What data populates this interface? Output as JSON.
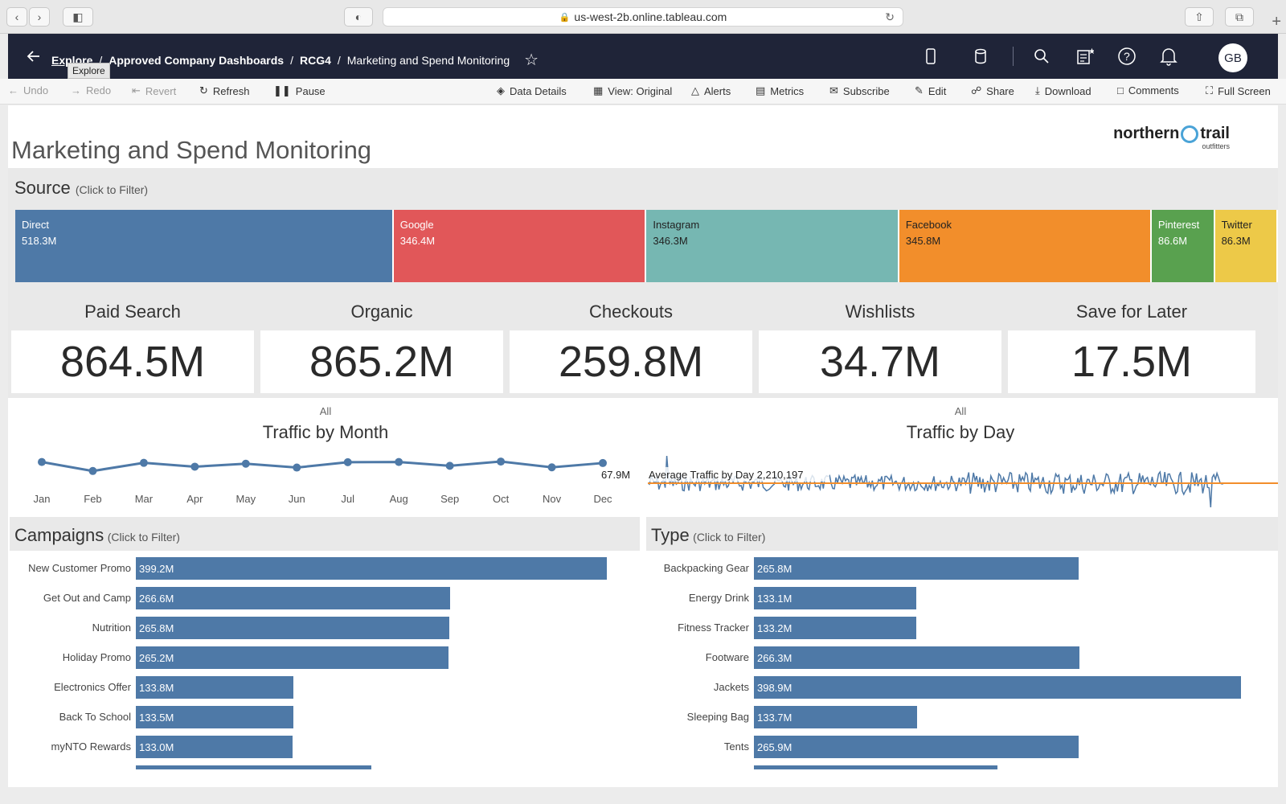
{
  "browser": {
    "url": "us-west-2b.online.tableau.com"
  },
  "nav": {
    "crumbs": [
      {
        "label": "Explore"
      },
      {
        "label": "Approved Company Dashboards"
      },
      {
        "label": "RCG4"
      },
      {
        "label": "Marketing and Spend Monitoring"
      }
    ],
    "separator": "/",
    "avatar_initials": "GB",
    "tooltip": "Explore"
  },
  "toolbar": {
    "undo": "Undo",
    "redo": "Redo",
    "revert": "Revert",
    "refresh": "Refresh",
    "pause": "Pause",
    "data_details": "Data Details",
    "view": "View: Original",
    "alerts": "Alerts",
    "metrics": "Metrics",
    "subscribe": "Subscribe",
    "edit": "Edit",
    "share": "Share",
    "download": "Download",
    "comments": "Comments",
    "full_screen": "Full Screen"
  },
  "dashboard": {
    "title": "Marketing and Spend Monitoring",
    "logo": {
      "left": "northern",
      "right": "trail",
      "sub": "outfitters"
    },
    "source": {
      "title": "Source",
      "hint": "(Click to Filter)",
      "items": [
        {
          "name": "Direct",
          "value": "518.3M",
          "num": 518.3,
          "color": "#4e79a7",
          "text_color": "#ffffff"
        },
        {
          "name": "Google",
          "value": "346.4M",
          "num": 346.4,
          "color": "#e15759",
          "text_color": "#ffffff"
        },
        {
          "name": "Instagram",
          "value": "346.3M",
          "num": 346.3,
          "color": "#76b7b2",
          "text_color": "#222222"
        },
        {
          "name": "Facebook",
          "value": "345.8M",
          "num": 345.8,
          "color": "#f28e2b",
          "text_color": "#222222"
        },
        {
          "name": "Pinterest",
          "value": "86.6M",
          "num": 86.6,
          "color": "#59a14f",
          "text_color": "#ffffff"
        },
        {
          "name": "Twitter",
          "value": "86.3M",
          "num": 86.3,
          "color": "#edc948",
          "text_color": "#222222"
        }
      ]
    },
    "kpis": [
      {
        "label": "Paid Search",
        "value": "864.5M"
      },
      {
        "label": "Organic",
        "value": "865.2M"
      },
      {
        "label": "Checkouts",
        "value": "259.8M"
      },
      {
        "label": "Wishlists",
        "value": "34.7M"
      },
      {
        "label": "Save for Later",
        "value": "17.5M"
      }
    ],
    "traffic_month": {
      "filter": "All",
      "title": "Traffic by Month",
      "last_label": "67.9M"
    },
    "traffic_day": {
      "filter": "All",
      "title": "Traffic by Day",
      "avg_label": "Average Traffic by Day 2,210,197"
    },
    "campaigns": {
      "title": "Campaigns",
      "hint": "(Click to Filter)"
    },
    "type": {
      "title": "Type",
      "hint": "(Click to Filter)"
    }
  },
  "chart_data": [
    {
      "type": "line",
      "title": "Traffic by Month",
      "categories": [
        "Jan",
        "Feb",
        "Mar",
        "Apr",
        "May",
        "Jun",
        "Jul",
        "Aug",
        "Sep",
        "Oct",
        "Nov",
        "Dec"
      ],
      "values": [
        68.4,
        64.2,
        68.0,
        66.2,
        67.6,
        65.8,
        68.3,
        68.4,
        66.6,
        68.6,
        65.9,
        67.9
      ],
      "ylim": [
        60,
        72
      ],
      "xlabel": "",
      "ylabel": ""
    },
    {
      "type": "line",
      "title": "Traffic by Day",
      "reference_line": {
        "label": "Average Traffic by Day",
        "value": 2210197
      },
      "series_length": 365,
      "xlabel": "",
      "ylabel": ""
    },
    {
      "type": "bar",
      "title": "Campaigns",
      "categories": [
        "New Customer Promo",
        "Get Out and Camp",
        "Nutrition",
        "Holiday Promo",
        "Electronics Offer",
        "Back To School",
        "myNTO Rewards"
      ],
      "values": [
        399.2,
        266.6,
        265.8,
        265.2,
        133.8,
        133.5,
        133.0
      ],
      "labels": [
        "399.2M",
        "266.6M",
        "265.8M",
        "265.2M",
        "133.8M",
        "133.5M",
        "133.0M"
      ],
      "max": 399.2
    },
    {
      "type": "bar",
      "title": "Type",
      "categories": [
        "Backpacking Gear",
        "Energy Drink",
        "Fitness Tracker",
        "Footware",
        "Jackets",
        "Sleeping Bag",
        "Tents"
      ],
      "values": [
        265.8,
        133.1,
        133.2,
        266.3,
        398.9,
        133.7,
        265.9
      ],
      "labels": [
        "265.8M",
        "133.1M",
        "133.2M",
        "266.3M",
        "398.9M",
        "133.7M",
        "265.9M"
      ],
      "max": 398.9
    }
  ]
}
